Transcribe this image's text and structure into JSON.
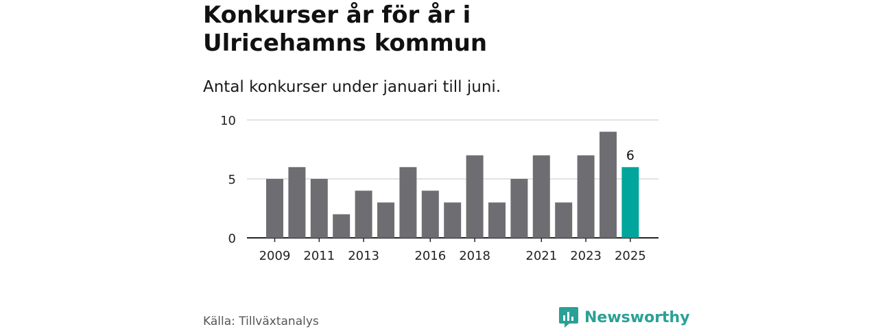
{
  "header": {
    "title": "Konkurser år för år i Ulricehamns kommun",
    "subtitle": "Antal konkurser under januari till juni."
  },
  "footer": {
    "source": "Källa: Tillväxtanalys",
    "brand": "Newsworthy"
  },
  "colors": {
    "bar": "#6e6d72",
    "highlight": "#00a59b",
    "grid": "#d9d9d9",
    "axis": "#222222",
    "brand": "#2aa096"
  },
  "chart_data": {
    "type": "bar",
    "categories": [
      "2009",
      "2010",
      "2011",
      "2012",
      "2013",
      "2014",
      "2015",
      "2016",
      "2017",
      "2018",
      "2019",
      "2020",
      "2021",
      "2022",
      "2023",
      "2024",
      "2025"
    ],
    "values": [
      5,
      6,
      5,
      2,
      4,
      3,
      6,
      4,
      3,
      7,
      3,
      5,
      7,
      3,
      7,
      9,
      6
    ],
    "tick_labels_shown": [
      "2009",
      "2011",
      "2013",
      "2016",
      "2018",
      "2021",
      "2023",
      "2025"
    ],
    "y_ticks": [
      0,
      5,
      10
    ],
    "ylim": [
      0,
      10
    ],
    "highlight_category": "2025",
    "highlight_label": "6",
    "grid": true,
    "title": "",
    "xlabel": "",
    "ylabel": ""
  }
}
